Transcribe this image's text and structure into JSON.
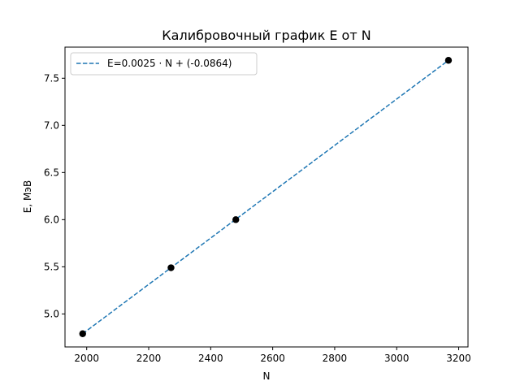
{
  "chart_data": {
    "type": "scatter",
    "title": "Калибровочный график E от N",
    "xlabel": "N",
    "ylabel": "E, МэВ",
    "xlim": [
      1930,
      3230
    ],
    "ylim": [
      4.65,
      7.83
    ],
    "xticks": [
      2000,
      2200,
      2400,
      2600,
      2800,
      3000,
      3200
    ],
    "yticks": [
      5.0,
      5.5,
      6.0,
      6.5,
      7.0,
      7.5
    ],
    "xtick_labels": [
      "2000",
      "2200",
      "2400",
      "2600",
      "2800",
      "3000",
      "3200"
    ],
    "ytick_labels": [
      "5.0",
      "5.5",
      "6.0",
      "6.5",
      "7.0",
      "7.5"
    ],
    "grid": false,
    "legend_position": "top-left",
    "series": [
      {
        "kind": "points",
        "color": "#000000",
        "x": [
          1987,
          2272,
          2481,
          3167
        ],
        "y": [
          4.79,
          5.49,
          6.0,
          7.69
        ]
      },
      {
        "kind": "fit-line",
        "name": "E=0.0025 · N + (-0.0864)",
        "color": "#1f77b4",
        "style": "dashed",
        "x": [
          1987,
          3167
        ],
        "y": [
          4.79,
          7.69
        ]
      }
    ]
  }
}
